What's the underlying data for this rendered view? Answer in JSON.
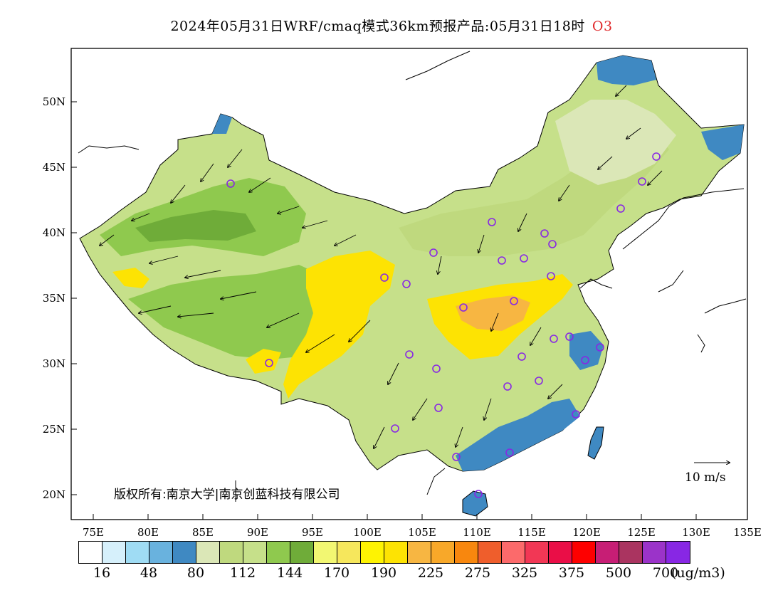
{
  "title": {
    "main": "2024年05月31日WRF/cmaq模式36km预报产品:05月31日18时",
    "species": "O3"
  },
  "axes": {
    "lon_ticks": [
      "75E",
      "80E",
      "85E",
      "90E",
      "95E",
      "100E",
      "105E",
      "110E",
      "115E",
      "120E",
      "125E",
      "130E",
      "135E"
    ],
    "lat_ticks": [
      "50N",
      "45N",
      "40N",
      "35N",
      "30N",
      "25N",
      "20N"
    ],
    "lon_range": [
      73,
      135
    ],
    "lat_range": [
      18,
      54
    ]
  },
  "colorbar": {
    "colors": [
      "#ffffff",
      "#d6f0fb",
      "#9fdcf4",
      "#69b2de",
      "#3f89c2",
      "#dbe7b7",
      "#bfd97e",
      "#c6e08a",
      "#8fc94e",
      "#6fac39",
      "#f2f772",
      "#f6e75c",
      "#fef302",
      "#fde303",
      "#f7b642",
      "#f8a829",
      "#f8870e",
      "#ef5e2c",
      "#fc6a6b",
      "#f23755",
      "#ea0e47",
      "#fe0000",
      "#c71e75",
      "#aa3460",
      "#9b33c9",
      "#8827e4"
    ],
    "labels": [
      "16",
      "48",
      "80",
      "112",
      "144",
      "170",
      "190",
      "225",
      "275",
      "325",
      "375",
      "500",
      "700"
    ],
    "unit": "(ug/m3)"
  },
  "copyright": "版权所有:南京大学|南京创蓝科技有限公司",
  "vector_reference": "10 m/s",
  "map": {
    "ocean_color": "#ffffff",
    "high_o3_color": "#fde303",
    "mid_o3_color": "#8fc94e",
    "low_o3_color": "#c6e08a",
    "coastal_low_color": "#3f89c2",
    "city_marker_color": "#8827e4"
  }
}
